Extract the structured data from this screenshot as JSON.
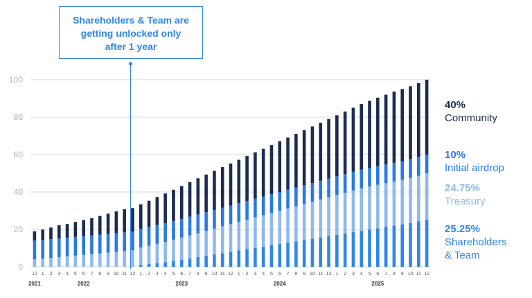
{
  "callout": {
    "text_lines": [
      "Shareholders & Team are",
      "getting unlocked only",
      "after 1 year"
    ],
    "color": "#2f86e8"
  },
  "legend": [
    {
      "percent": "40%",
      "name_lines": [
        "Community"
      ],
      "color": "#1c2b4f"
    },
    {
      "percent": "10%",
      "name_lines": [
        "Initial airdrop"
      ],
      "color": "#2979e3"
    },
    {
      "percent": "24.75%",
      "name_lines": [
        "Treasury"
      ],
      "color": "#8fb8ee"
    },
    {
      "percent": "25.25%",
      "name_lines": [
        "Shareholders",
        "& Team"
      ],
      "color": "#2f86e8"
    }
  ],
  "chart_data": {
    "type": "bar",
    "stacked": true,
    "ylim": [
      0,
      100
    ],
    "yticks": [
      0,
      20,
      40,
      60,
      80,
      100
    ],
    "grid": true,
    "month_labels": [
      "12",
      "1",
      "2",
      "3",
      "4",
      "5",
      "6",
      "7",
      "8",
      "9",
      "10",
      "11",
      "12",
      "1",
      "2",
      "3",
      "4",
      "5",
      "6",
      "7",
      "8",
      "9",
      "10",
      "11",
      "12",
      "1",
      "2",
      "3",
      "4",
      "5",
      "6",
      "7",
      "8",
      "9",
      "10",
      "11",
      "12",
      "1",
      "2",
      "3",
      "4",
      "5",
      "6",
      "7",
      "8",
      "9",
      "10",
      "11",
      "12"
    ],
    "year_labels": [
      {
        "label": "2021",
        "index": 0
      },
      {
        "label": "2022",
        "index": 6
      },
      {
        "label": "2023",
        "index": 18
      },
      {
        "label": "2024",
        "index": 30
      },
      {
        "label": "2025",
        "index": 42
      }
    ],
    "series": [
      {
        "name": "Shareholders & Team",
        "color": "#2f86e8",
        "values": [
          0,
          0,
          0,
          0,
          0,
          0,
          0,
          0,
          0,
          0,
          0,
          0,
          0,
          1.0,
          1.5,
          2.0,
          2.5,
          3.2,
          3.8,
          4.5,
          5.2,
          5.9,
          6.6,
          7.3,
          8.0,
          8.7,
          9.4,
          10.1,
          10.8,
          11.5,
          12.2,
          12.9,
          13.6,
          14.3,
          15.0,
          15.7,
          16.4,
          17.1,
          17.8,
          18.5,
          19.2,
          19.9,
          20.6,
          21.3,
          22.0,
          22.7,
          23.4,
          24.3,
          25.25
        ]
      },
      {
        "name": "Treasury",
        "color": "#8fb8ee",
        "values": [
          4.0,
          4.4,
          4.8,
          5.2,
          5.6,
          6.0,
          6.4,
          6.8,
          7.2,
          7.6,
          8.0,
          8.4,
          8.8,
          9.3,
          9.8,
          10.3,
          10.8,
          11.3,
          11.8,
          12.3,
          12.8,
          13.3,
          13.8,
          14.3,
          14.8,
          15.3,
          15.8,
          16.3,
          16.8,
          17.3,
          17.8,
          18.3,
          18.8,
          19.3,
          19.8,
          20.3,
          20.8,
          21.3,
          21.8,
          22.3,
          22.8,
          23.0,
          23.2,
          23.4,
          23.6,
          23.8,
          24.1,
          24.4,
          24.75
        ]
      },
      {
        "name": "Initial airdrop",
        "color": "#2979e3",
        "values": [
          10,
          10,
          10,
          10,
          10,
          10,
          10,
          10,
          10,
          10,
          10,
          10,
          10,
          10,
          10,
          10,
          10,
          10,
          10,
          10,
          10,
          10,
          10,
          10,
          10,
          10,
          10,
          10,
          10,
          10,
          10,
          10,
          10,
          10,
          10,
          10,
          10,
          10,
          10,
          10,
          10,
          10,
          10,
          10,
          10,
          10,
          10,
          10,
          10
        ]
      },
      {
        "name": "Community",
        "color": "#1c2b4f",
        "values": [
          5.0,
          5.5,
          6.2,
          7.0,
          7.3,
          8.0,
          8.6,
          9.2,
          10.0,
          10.8,
          11.6,
          12.4,
          12.6,
          13.1,
          14.0,
          15.0,
          15.9,
          16.7,
          17.6,
          18.5,
          19.3,
          20.1,
          20.9,
          21.7,
          22.4,
          23.2,
          24.0,
          24.8,
          25.5,
          26.3,
          27.1,
          27.9,
          28.7,
          29.4,
          30.2,
          31.0,
          31.8,
          32.6,
          33.4,
          34.2,
          35.0,
          35.8,
          36.6,
          37.3,
          38.0,
          38.5,
          39.0,
          39.5,
          40.0
        ]
      }
    ]
  }
}
